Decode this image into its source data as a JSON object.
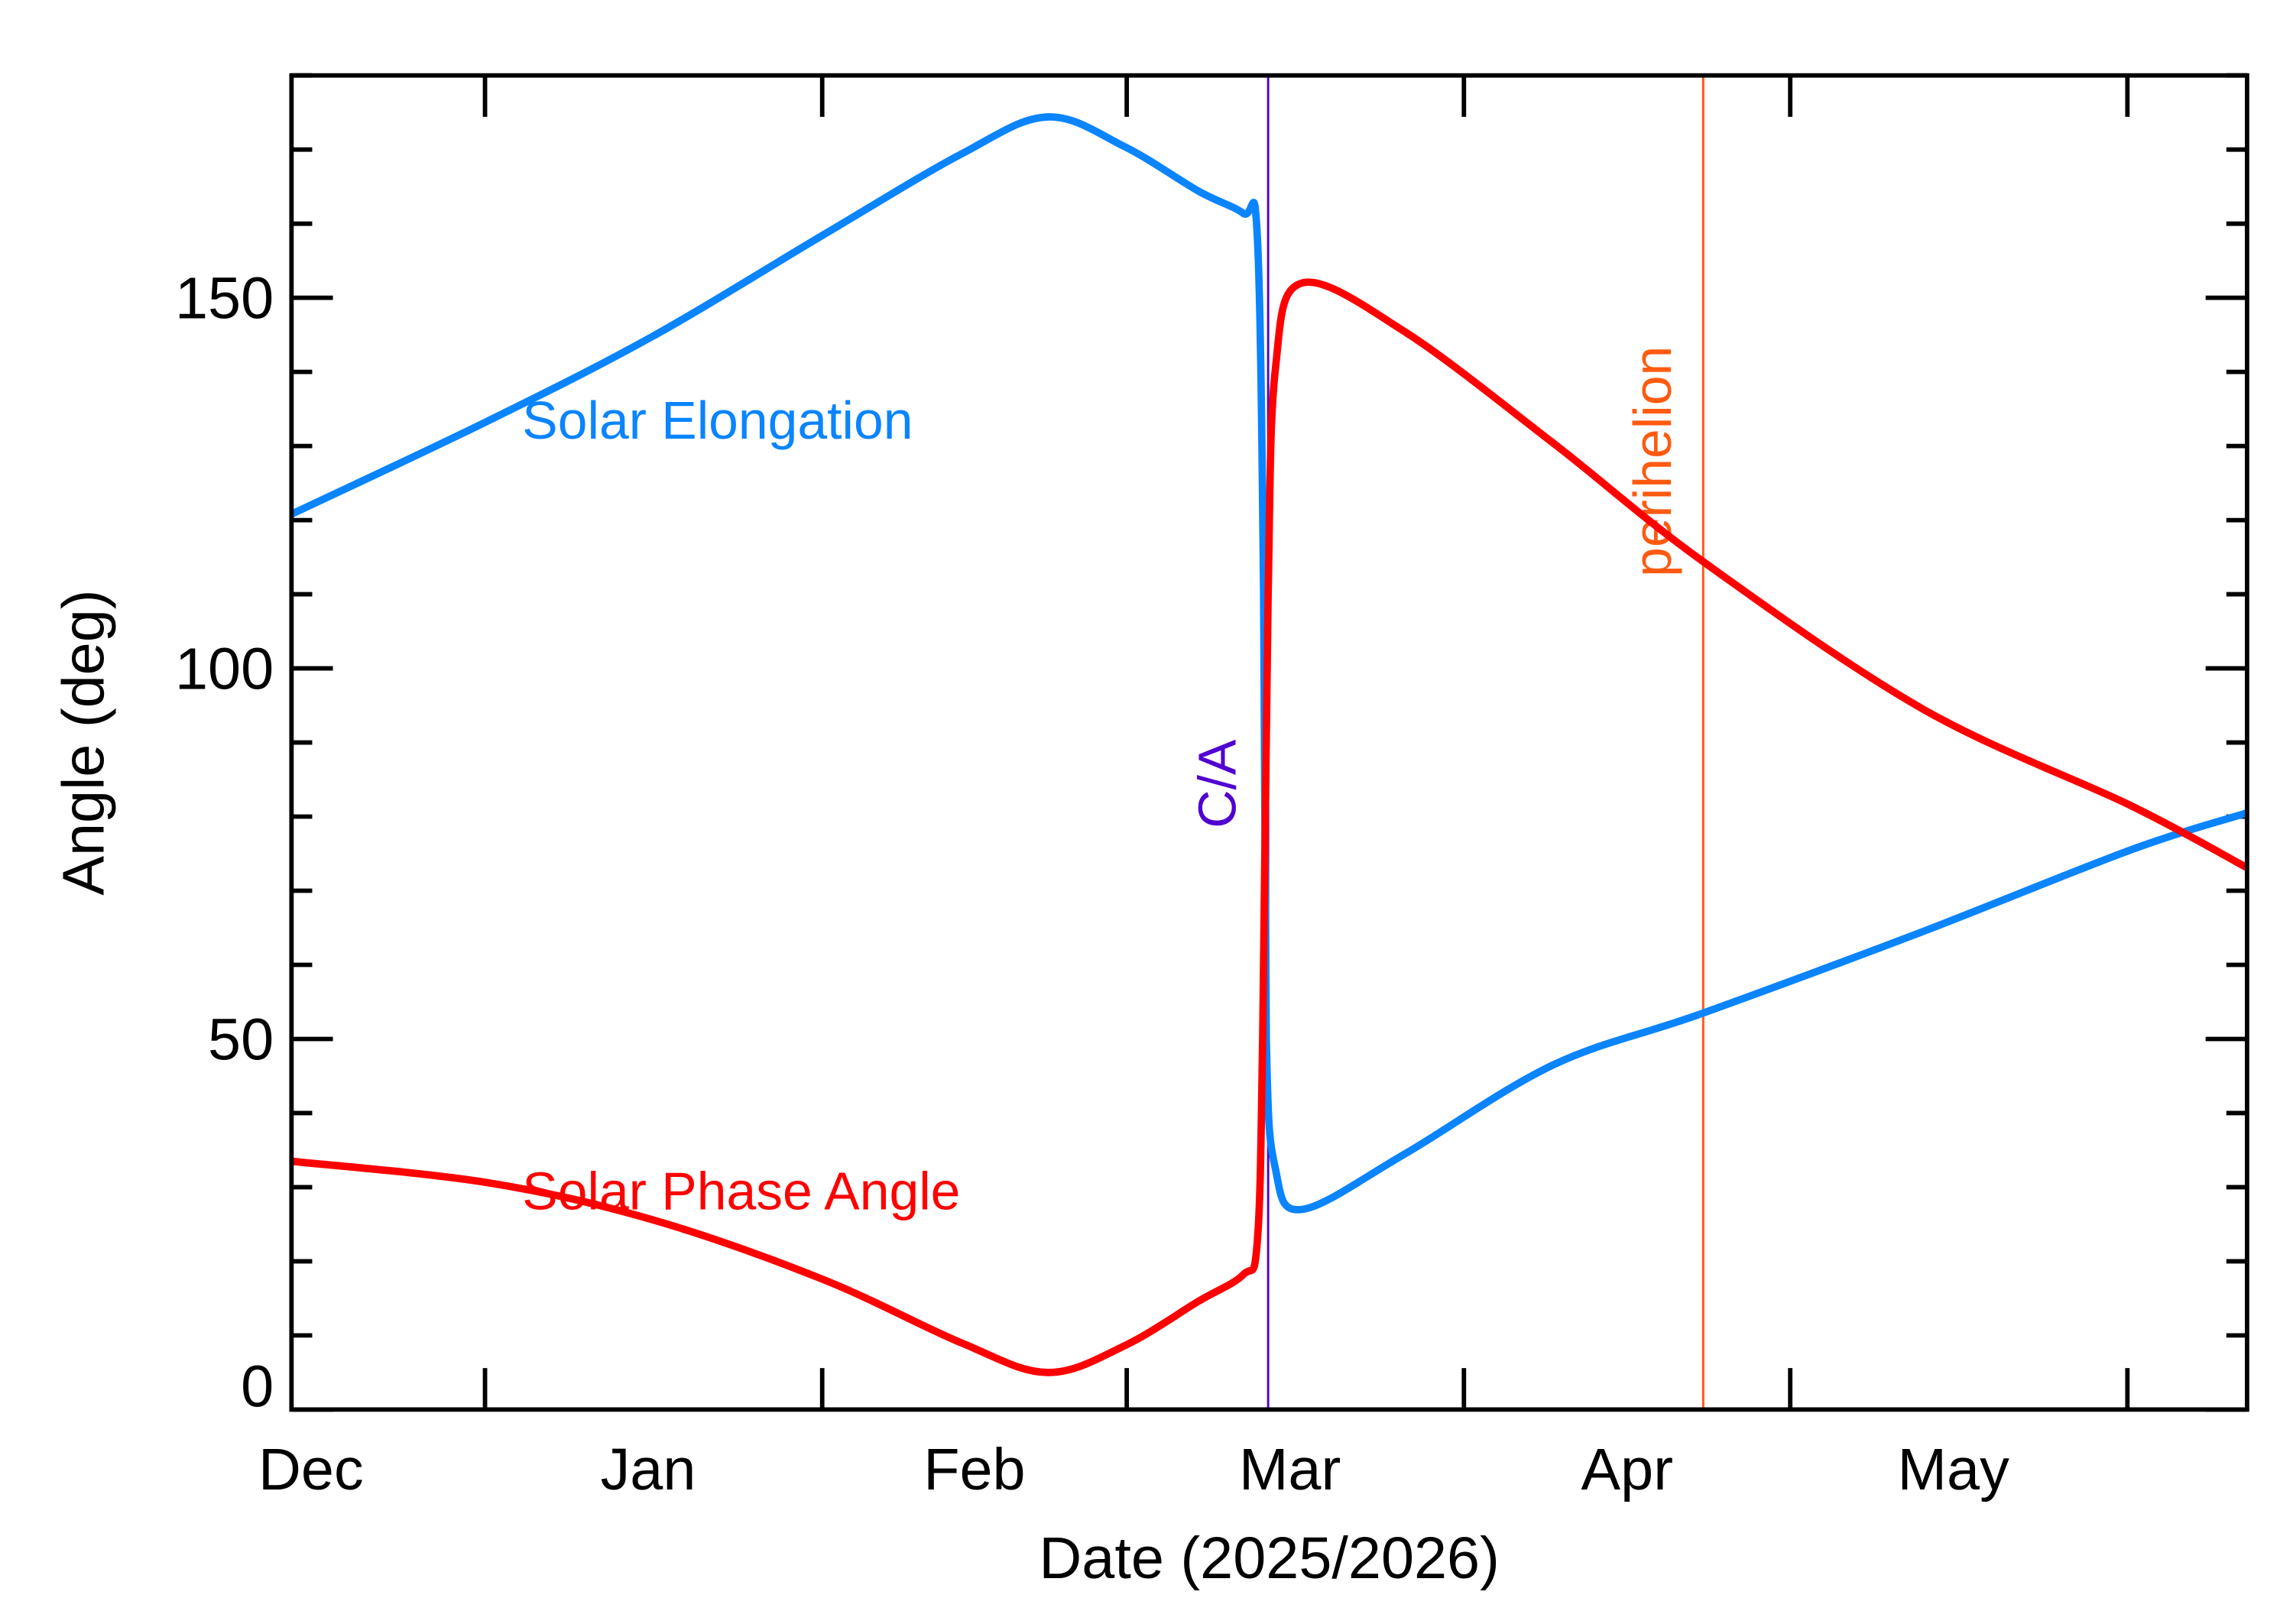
{
  "chart_data": {
    "type": "line",
    "xlabel": "Date (2025/2026)",
    "ylabel": "Angle (deg)",
    "xlim": [
      "2025-12-14T05:00",
      "2026-06-12T00:00"
    ],
    "ylim": [
      0,
      180
    ],
    "grid": false,
    "x_ticks": [
      "2026-01-01",
      "2026-02-01",
      "2026-03-01",
      "2026-04-01",
      "2026-05-01",
      "2026-06-01"
    ],
    "x_tick_labels": [
      {
        "label": "Dec",
        "date": "2025-12-16"
      },
      {
        "label": "Jan",
        "date": "2026-01-16"
      },
      {
        "label": "Feb",
        "date": "2026-02-15"
      },
      {
        "label": "Mar",
        "date": "2026-03-16"
      },
      {
        "label": "Apr",
        "date": "2026-04-16"
      },
      {
        "label": "May",
        "date": "2026-05-16"
      }
    ],
    "y_major_ticks": [
      0,
      50,
      100,
      150
    ],
    "y_tick_labels": [
      "0",
      "50",
      "100",
      "150"
    ],
    "y_minor_step": 10,
    "series": [
      {
        "name": "Solar Elongation",
        "color": "#0a84ff",
        "points": [
          [
            "2025-12-14T05:00",
            120.8
          ],
          [
            "2026-01-01T07:00",
            133.4
          ],
          [
            "2026-01-16T10:00",
            144.8
          ],
          [
            "2026-02-01T00:00",
            158.4
          ],
          [
            "2026-02-13T19:00",
            169.4
          ],
          [
            "2026-02-21T17:00",
            174.4
          ],
          [
            "2026-02-28T19:00",
            170.4
          ],
          [
            "2026-03-07T14:00",
            164.4
          ],
          [
            "2026-03-11T17:00",
            161.4
          ],
          [
            "2026-03-13T00:00",
            158.4
          ],
          [
            "2026-03-13T14:00",
            110.0
          ],
          [
            "2026-03-13T20:00",
            50.0
          ],
          [
            "2026-03-14T16:00",
            32.5
          ],
          [
            "2026-03-17T03:00",
            27.0
          ],
          [
            "2026-03-26T14:00",
            34.5
          ],
          [
            "2026-04-09T05:00",
            46.5
          ],
          [
            "2026-04-23T00:00",
            53.5
          ],
          [
            "2026-05-13T05:00",
            64.5
          ],
          [
            "2026-06-01T07:00",
            75.5
          ],
          [
            "2026-06-12T00:00",
            80.5
          ]
        ]
      },
      {
        "name": "Solar Phase Angle",
        "color": "#ff0000",
        "points": [
          [
            "2025-12-14T05:00",
            33.5
          ],
          [
            "2026-01-01T07:00",
            30.6
          ],
          [
            "2026-01-16T10:00",
            25.6
          ],
          [
            "2026-02-01T00:00",
            17.6
          ],
          [
            "2026-02-13T19:00",
            9.0
          ],
          [
            "2026-02-21T17:00",
            5.0
          ],
          [
            "2026-02-28T19:00",
            8.6
          ],
          [
            "2026-03-07T14:00",
            14.6
          ],
          [
            "2026-03-11T17:00",
            18.2
          ],
          [
            "2026-03-13T00:00",
            22.6
          ],
          [
            "2026-03-13T12:00",
            50.5
          ],
          [
            "2026-03-14T00:00",
            110.0
          ],
          [
            "2026-03-14T16:00",
            140.4
          ],
          [
            "2026-03-17T03:00",
            152.0
          ],
          [
            "2026-03-26T14:00",
            145.4
          ],
          [
            "2026-04-09T05:00",
            130.4
          ],
          [
            "2026-04-23T00:00",
            114.4
          ],
          [
            "2026-05-13T05:00",
            94.5
          ],
          [
            "2026-06-01T07:00",
            81.5
          ],
          [
            "2026-06-12T00:00",
            73.1
          ]
        ]
      }
    ],
    "annotations": [
      {
        "text": "Solar Elongation",
        "color": "#0a84ff",
        "date": "2026-01-04",
        "value": 134
      },
      {
        "text": "Solar Phase Angle",
        "color": "#ff0000",
        "date": "2026-01-04",
        "value": 30
      }
    ],
    "vertical_lines": [
      {
        "label": "C/A",
        "date": "2026-03-14T00:00",
        "color": "#5000d0"
      },
      {
        "label": "perihelion",
        "date": "2026-04-23T00:00",
        "color": "#ff5a10"
      }
    ]
  }
}
